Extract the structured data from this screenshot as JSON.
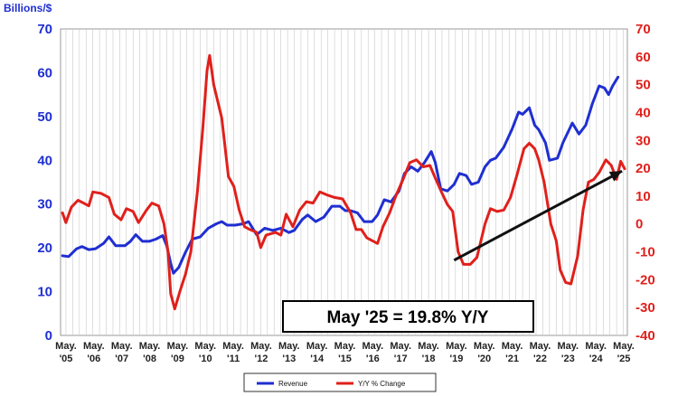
{
  "chart_data": {
    "type": "line",
    "ylabel": "Billions/$",
    "x_tick_labels": [
      {
        "top": "May.",
        "bottom": "'05"
      },
      {
        "top": "May.",
        "bottom": "'06"
      },
      {
        "top": "May.",
        "bottom": "'07"
      },
      {
        "top": "May.",
        "bottom": "'08"
      },
      {
        "top": "May.",
        "bottom": "'09"
      },
      {
        "top": "May.",
        "bottom": "'10"
      },
      {
        "top": "May.",
        "bottom": "'11"
      },
      {
        "top": "May.",
        "bottom": "'12"
      },
      {
        "top": "May.",
        "bottom": "'13"
      },
      {
        "top": "May.",
        "bottom": "'14"
      },
      {
        "top": "May.",
        "bottom": "'15"
      },
      {
        "top": "May.",
        "bottom": "'16"
      },
      {
        "top": "May.",
        "bottom": "'17"
      },
      {
        "top": "May.",
        "bottom": "'18"
      },
      {
        "top": "May.",
        "bottom": "'19"
      },
      {
        "top": "May.",
        "bottom": "'20"
      },
      {
        "top": "May.",
        "bottom": "'21"
      },
      {
        "top": "May.",
        "bottom": "'22"
      },
      {
        "top": "May.",
        "bottom": "'23"
      },
      {
        "top": "May.",
        "bottom": "'24"
      },
      {
        "top": "May.",
        "bottom": "'25"
      }
    ],
    "y_left": {
      "min": 0,
      "max": 70,
      "ticks": [
        0,
        10,
        20,
        30,
        40,
        50,
        60,
        70
      ]
    },
    "y_right": {
      "min": -40,
      "max": 70,
      "ticks": [
        -40,
        -30,
        -20,
        -10,
        0,
        10,
        20,
        30,
        40,
        50,
        60,
        70
      ]
    },
    "grid": "vertical",
    "legend_position": "bottom-center",
    "series": [
      {
        "name": "Revenue",
        "axis": "left",
        "color": "#1f2fd1",
        "points": [
          [
            2005.37,
            18.2
          ],
          [
            2005.6,
            18.0
          ],
          [
            2005.9,
            19.8
          ],
          [
            2006.1,
            20.3
          ],
          [
            2006.35,
            19.6
          ],
          [
            2006.6,
            19.8
          ],
          [
            2006.9,
            21.0
          ],
          [
            2007.1,
            22.5
          ],
          [
            2007.35,
            20.5
          ],
          [
            2007.7,
            20.5
          ],
          [
            2007.9,
            21.5
          ],
          [
            2008.1,
            23.0
          ],
          [
            2008.35,
            21.5
          ],
          [
            2008.6,
            21.5
          ],
          [
            2008.85,
            22.0
          ],
          [
            2009.1,
            22.8
          ],
          [
            2009.25,
            20.5
          ],
          [
            2009.4,
            16.5
          ],
          [
            2009.5,
            14.2
          ],
          [
            2009.7,
            15.5
          ],
          [
            2009.95,
            19.0
          ],
          [
            2010.2,
            22.0
          ],
          [
            2010.5,
            22.5
          ],
          [
            2010.8,
            24.5
          ],
          [
            2011.1,
            25.5
          ],
          [
            2011.3,
            26.0
          ],
          [
            2011.5,
            25.2
          ],
          [
            2011.8,
            25.2
          ],
          [
            2012.1,
            25.5
          ],
          [
            2012.3,
            26.0
          ],
          [
            2012.6,
            23.0
          ],
          [
            2012.9,
            24.5
          ],
          [
            2013.2,
            24.0
          ],
          [
            2013.5,
            24.5
          ],
          [
            2013.8,
            23.5
          ],
          [
            2014.0,
            24.0
          ],
          [
            2014.3,
            26.5
          ],
          [
            2014.5,
            27.5
          ],
          [
            2014.8,
            26.0
          ],
          [
            2015.1,
            27.0
          ],
          [
            2015.4,
            29.5
          ],
          [
            2015.7,
            29.5
          ],
          [
            2015.9,
            28.5
          ],
          [
            2016.1,
            28.5
          ],
          [
            2016.35,
            28.0
          ],
          [
            2016.6,
            26.0
          ],
          [
            2016.9,
            26.0
          ],
          [
            2017.1,
            27.5
          ],
          [
            2017.35,
            31.0
          ],
          [
            2017.6,
            30.5
          ],
          [
            2017.9,
            33.0
          ],
          [
            2018.1,
            37.0
          ],
          [
            2018.35,
            38.5
          ],
          [
            2018.6,
            37.5
          ],
          [
            2018.85,
            39.5
          ],
          [
            2019.1,
            42.0
          ],
          [
            2019.25,
            39.5
          ],
          [
            2019.45,
            33.5
          ],
          [
            2019.7,
            33.0
          ],
          [
            2019.95,
            34.5
          ],
          [
            2020.15,
            37.0
          ],
          [
            2020.4,
            36.5
          ],
          [
            2020.6,
            34.5
          ],
          [
            2020.85,
            35.0
          ],
          [
            2021.1,
            38.5
          ],
          [
            2021.3,
            40.0
          ],
          [
            2021.5,
            40.5
          ],
          [
            2021.8,
            43.0
          ],
          [
            2022.1,
            47.0
          ],
          [
            2022.35,
            51.0
          ],
          [
            2022.5,
            50.5
          ],
          [
            2022.75,
            52.0
          ],
          [
            2022.95,
            48.0
          ],
          [
            2023.1,
            47.0
          ],
          [
            2023.35,
            44.0
          ],
          [
            2023.5,
            40.0
          ],
          [
            2023.8,
            40.5
          ],
          [
            2024.0,
            44.0
          ],
          [
            2024.35,
            48.5
          ],
          [
            2024.6,
            46.0
          ],
          [
            2024.85,
            48.0
          ],
          [
            2025.1,
            53.0
          ],
          [
            2025.35,
            57.0
          ],
          [
            2025.55,
            56.5
          ],
          [
            2025.7,
            55.0
          ],
          [
            2025.85,
            57.0
          ],
          [
            2026.05,
            59.0
          ]
        ]
      },
      {
        "name": "Y/Y % Change",
        "axis": "right",
        "color": "#e0201b",
        "points": [
          [
            2005.37,
            4.0
          ],
          [
            2005.5,
            0.5
          ],
          [
            2005.7,
            6.0
          ],
          [
            2005.95,
            8.5
          ],
          [
            2006.15,
            7.5
          ],
          [
            2006.35,
            6.5
          ],
          [
            2006.5,
            11.5
          ],
          [
            2006.8,
            11.0
          ],
          [
            2007.1,
            9.5
          ],
          [
            2007.3,
            3.5
          ],
          [
            2007.55,
            1.5
          ],
          [
            2007.75,
            5.5
          ],
          [
            2008.0,
            4.5
          ],
          [
            2008.2,
            0.5
          ],
          [
            2008.5,
            5.0
          ],
          [
            2008.7,
            7.5
          ],
          [
            2008.95,
            6.5
          ],
          [
            2009.15,
            0.0
          ],
          [
            2009.3,
            -10.0
          ],
          [
            2009.4,
            -25.0
          ],
          [
            2009.55,
            -30.5
          ],
          [
            2009.75,
            -24.0
          ],
          [
            2009.95,
            -18.0
          ],
          [
            2010.15,
            -10.0
          ],
          [
            2010.4,
            12.0
          ],
          [
            2010.6,
            35.0
          ],
          [
            2010.75,
            55.0
          ],
          [
            2010.85,
            60.5
          ],
          [
            2011.0,
            50.0
          ],
          [
            2011.3,
            38.0
          ],
          [
            2011.55,
            17.0
          ],
          [
            2011.75,
            13.5
          ],
          [
            2011.95,
            5.0
          ],
          [
            2012.15,
            -1.0
          ],
          [
            2012.35,
            -2.0
          ],
          [
            2012.6,
            -3.0
          ],
          [
            2012.75,
            -8.5
          ],
          [
            2012.95,
            -4.0
          ],
          [
            2013.3,
            -3.0
          ],
          [
            2013.5,
            -4.0
          ],
          [
            2013.7,
            3.5
          ],
          [
            2013.95,
            -1.0
          ],
          [
            2014.2,
            5.0
          ],
          [
            2014.45,
            8.0
          ],
          [
            2014.7,
            7.5
          ],
          [
            2014.95,
            11.5
          ],
          [
            2015.2,
            10.5
          ],
          [
            2015.5,
            9.5
          ],
          [
            2015.8,
            9.0
          ],
          [
            2016.1,
            4.0
          ],
          [
            2016.3,
            -2.0
          ],
          [
            2016.5,
            -2.0
          ],
          [
            2016.7,
            -5.0
          ],
          [
            2016.9,
            -6.0
          ],
          [
            2017.1,
            -7.0
          ],
          [
            2017.3,
            -1.0
          ],
          [
            2017.55,
            4.0
          ],
          [
            2017.8,
            10.5
          ],
          [
            2018.05,
            16.0
          ],
          [
            2018.3,
            22.0
          ],
          [
            2018.55,
            23.0
          ],
          [
            2018.8,
            20.5
          ],
          [
            2019.05,
            21.0
          ],
          [
            2019.25,
            16.5
          ],
          [
            2019.5,
            11.0
          ],
          [
            2019.7,
            7.0
          ],
          [
            2019.9,
            4.5
          ],
          [
            2020.1,
            -10.0
          ],
          [
            2020.3,
            -14.5
          ],
          [
            2020.55,
            -14.5
          ],
          [
            2020.8,
            -12.0
          ],
          [
            2021.1,
            0.0
          ],
          [
            2021.3,
            5.5
          ],
          [
            2021.55,
            4.5
          ],
          [
            2021.8,
            5.0
          ],
          [
            2022.05,
            9.5
          ],
          [
            2022.3,
            18.0
          ],
          [
            2022.55,
            27.0
          ],
          [
            2022.75,
            29.0
          ],
          [
            2022.95,
            27.0
          ],
          [
            2023.1,
            23.0
          ],
          [
            2023.3,
            15.0
          ],
          [
            2023.55,
            0.0
          ],
          [
            2023.75,
            -6.0
          ],
          [
            2023.9,
            -16.5
          ],
          [
            2024.1,
            -21.0
          ],
          [
            2024.3,
            -21.5
          ],
          [
            2024.55,
            -11.5
          ],
          [
            2024.75,
            5.0
          ],
          [
            2024.95,
            15.0
          ],
          [
            2025.15,
            16.0
          ],
          [
            2025.35,
            18.5
          ],
          [
            2025.6,
            23.0
          ],
          [
            2025.8,
            21.0
          ],
          [
            2026.0,
            16.0
          ],
          [
            2026.15,
            22.5
          ],
          [
            2026.3,
            19.8
          ]
        ]
      }
    ],
    "annotations": [
      {
        "text": "May '25 = 19.8% Y/Y"
      }
    ],
    "trend_arrow": {
      "from": [
        2019.95,
        -13.0
      ],
      "to": [
        2026.2,
        19.0
      ]
    }
  }
}
